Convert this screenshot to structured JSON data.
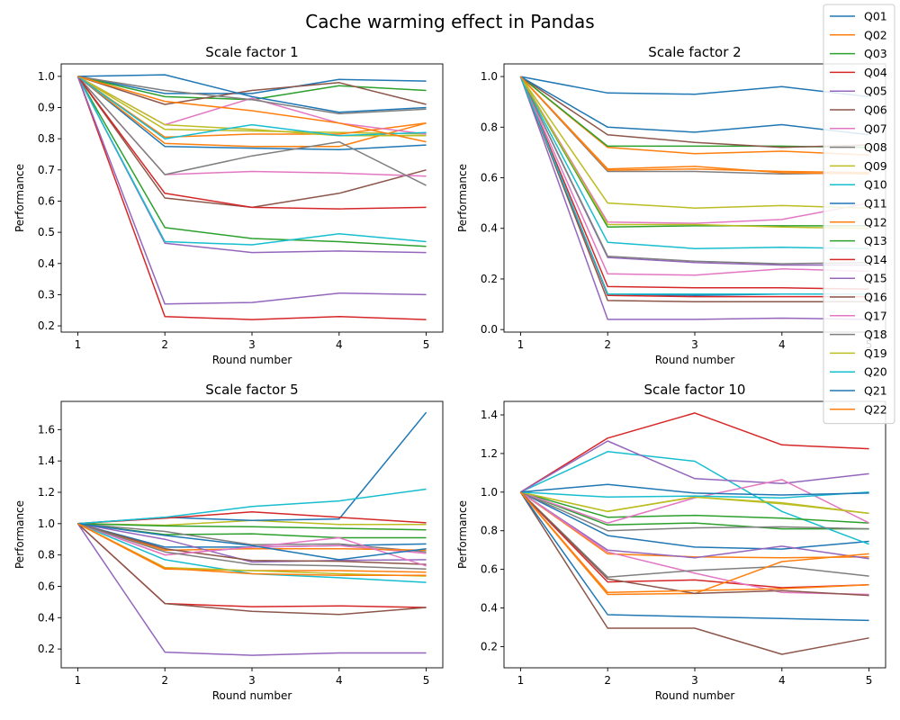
{
  "chart_data": {
    "type": "line",
    "title": "Cache warming effect in Pandas",
    "x": [
      1,
      2,
      3,
      4,
      5
    ],
    "xlabel": "Round number",
    "ylabel": "Performance",
    "legend": "top-right",
    "grid": false,
    "series_names": [
      "Q01",
      "Q02",
      "Q03",
      "Q04",
      "Q05",
      "Q06",
      "Q07",
      "Q08",
      "Q09",
      "Q10",
      "Q11",
      "Q12",
      "Q13",
      "Q14",
      "Q15",
      "Q16",
      "Q17",
      "Q18",
      "Q19",
      "Q20",
      "Q21",
      "Q22"
    ],
    "colors": [
      "#1f77b4",
      "#ff7f0e",
      "#2ca02c",
      "#d62728",
      "#9467bd",
      "#8c564b",
      "#e377c2",
      "#7f7f7f",
      "#bcbd22",
      "#17becf"
    ],
    "panels": [
      {
        "title": "Scale factor 1",
        "ylim": [
          0.18,
          1.04
        ],
        "yticks": [
          "0.2",
          "0.3",
          "0.4",
          "0.5",
          "0.6",
          "0.7",
          "0.8",
          "0.9",
          "1.0"
        ],
        "ytick_values": [
          0.2,
          0.3,
          0.4,
          0.5,
          0.6,
          0.7,
          0.8,
          0.9,
          1.0
        ],
        "series": [
          [
            1.0,
            0.775,
            0.77,
            0.765,
            0.78
          ],
          [
            1.0,
            0.785,
            0.775,
            0.775,
            0.85
          ],
          [
            1.0,
            0.515,
            0.48,
            0.47,
            0.455
          ],
          [
            1.0,
            0.23,
            0.22,
            0.23,
            0.22
          ],
          [
            1.0,
            0.465,
            0.435,
            0.44,
            0.435
          ],
          [
            1.0,
            0.61,
            0.58,
            0.625,
            0.7
          ],
          [
            1.0,
            0.685,
            0.695,
            0.69,
            0.68
          ],
          [
            1.0,
            0.685,
            0.745,
            0.79,
            0.65
          ],
          [
            1.0,
            0.83,
            0.825,
            0.82,
            0.815
          ],
          [
            1.0,
            0.47,
            0.46,
            0.495,
            0.47
          ],
          [
            1.0,
            0.945,
            0.945,
            0.99,
            0.985
          ],
          [
            1.0,
            0.805,
            0.815,
            0.815,
            0.85
          ],
          [
            1.0,
            0.935,
            0.925,
            0.97,
            0.955
          ],
          [
            1.0,
            0.625,
            0.58,
            0.575,
            0.58
          ],
          [
            1.0,
            0.27,
            0.275,
            0.305,
            0.3
          ],
          [
            1.0,
            0.91,
            0.955,
            0.98,
            0.91
          ],
          [
            1.0,
            0.845,
            0.93,
            0.85,
            0.815
          ],
          [
            1.0,
            0.955,
            0.925,
            0.88,
            0.895
          ],
          [
            1.0,
            0.845,
            0.83,
            0.81,
            0.81
          ],
          [
            1.0,
            0.8,
            0.845,
            0.81,
            0.82
          ],
          [
            1.0,
            1.005,
            0.935,
            0.885,
            0.9
          ],
          [
            1.0,
            0.92,
            0.89,
            0.85,
            0.79
          ]
        ]
      },
      {
        "title": "Scale factor 2",
        "ylim": [
          -0.01,
          1.05
        ],
        "yticks": [
          "0.0",
          "0.2",
          "0.4",
          "0.6",
          "0.8",
          "1.0"
        ],
        "ytick_values": [
          0.0,
          0.2,
          0.4,
          0.6,
          0.8,
          1.0
        ],
        "series": [
          [
            1.0,
            0.935,
            0.93,
            0.96,
            0.92
          ],
          [
            1.0,
            0.72,
            0.695,
            0.705,
            0.69
          ],
          [
            1.0,
            0.725,
            0.725,
            0.725,
            0.72
          ],
          [
            1.0,
            0.17,
            0.165,
            0.165,
            0.16
          ],
          [
            1.0,
            0.04,
            0.04,
            0.045,
            0.04
          ],
          [
            1.0,
            0.77,
            0.74,
            0.72,
            0.73
          ],
          [
            1.0,
            0.425,
            0.42,
            0.435,
            0.5
          ],
          [
            1.0,
            0.625,
            0.625,
            0.615,
            0.62
          ],
          [
            1.0,
            0.5,
            0.48,
            0.49,
            0.48
          ],
          [
            1.0,
            0.345,
            0.32,
            0.325,
            0.32
          ],
          [
            1.0,
            0.14,
            0.135,
            0.14,
            0.14
          ],
          [
            1.0,
            0.635,
            0.645,
            0.62,
            0.615
          ],
          [
            1.0,
            0.405,
            0.41,
            0.41,
            0.41
          ],
          [
            1.0,
            0.135,
            0.13,
            0.13,
            0.13
          ],
          [
            1.0,
            0.285,
            0.265,
            0.255,
            0.255
          ],
          [
            1.0,
            0.115,
            0.11,
            0.11,
            0.11
          ],
          [
            1.0,
            0.22,
            0.215,
            0.24,
            0.23
          ],
          [
            1.0,
            0.29,
            0.27,
            0.26,
            0.265
          ],
          [
            1.0,
            0.415,
            0.415,
            0.405,
            0.4
          ],
          [
            1.0,
            0.14,
            0.14,
            0.14,
            0.14
          ],
          [
            1.0,
            0.8,
            0.78,
            0.81,
            0.77
          ],
          [
            1.0,
            0.63,
            0.635,
            0.625,
            0.62
          ]
        ]
      },
      {
        "title": "Scale factor 5",
        "ylim": [
          0.08,
          1.78
        ],
        "yticks": [
          "0.2",
          "0.4",
          "0.6",
          "0.8",
          "1.0",
          "1.2",
          "1.4",
          "1.6"
        ],
        "ytick_values": [
          0.2,
          0.4,
          0.6,
          0.8,
          1.0,
          1.2,
          1.4,
          1.6
        ],
        "series": [
          [
            1.0,
            0.85,
            0.85,
            0.86,
            0.87
          ],
          [
            1.0,
            0.71,
            0.7,
            0.7,
            0.69
          ],
          [
            1.0,
            0.93,
            0.935,
            0.91,
            0.91
          ],
          [
            1.0,
            0.49,
            0.47,
            0.475,
            0.465
          ],
          [
            1.0,
            0.18,
            0.16,
            0.175,
            0.175
          ],
          [
            1.0,
            0.49,
            0.44,
            0.42,
            0.465
          ],
          [
            1.0,
            0.8,
            0.85,
            0.86,
            0.81
          ],
          [
            1.0,
            0.95,
            0.865,
            0.87,
            0.82
          ],
          [
            1.0,
            0.99,
            1.02,
            0.995,
            0.995
          ],
          [
            1.0,
            0.77,
            0.68,
            0.655,
            0.625
          ],
          [
            1.0,
            1.04,
            1.02,
            1.03,
            1.71
          ],
          [
            1.0,
            0.83,
            0.84,
            0.84,
            0.83
          ],
          [
            1.0,
            0.985,
            0.98,
            0.97,
            0.96
          ],
          [
            1.0,
            1.035,
            1.075,
            1.04,
            1.005
          ],
          [
            1.0,
            0.9,
            0.755,
            0.765,
            0.77
          ],
          [
            1.0,
            0.84,
            0.765,
            0.76,
            0.74
          ],
          [
            1.0,
            0.8,
            0.85,
            0.91,
            0.73
          ],
          [
            1.0,
            0.82,
            0.74,
            0.73,
            0.71
          ],
          [
            1.0,
            0.72,
            0.7,
            0.68,
            0.665
          ],
          [
            1.0,
            1.04,
            1.11,
            1.145,
            1.22
          ],
          [
            1.0,
            0.925,
            0.86,
            0.77,
            0.84
          ],
          [
            1.0,
            0.715,
            0.68,
            0.67,
            0.67
          ]
        ]
      },
      {
        "title": "Scale factor 10",
        "ylim": [
          0.09,
          1.47
        ],
        "yticks": [
          "0.2",
          "0.4",
          "0.6",
          "0.8",
          "1.0",
          "1.2",
          "1.4"
        ],
        "ytick_values": [
          0.2,
          0.4,
          0.6,
          0.8,
          1.0,
          1.2,
          1.4
        ],
        "series": [
          [
            1.0,
            0.775,
            0.715,
            0.705,
            0.745
          ],
          [
            1.0,
            0.68,
            0.665,
            0.66,
            0.665
          ],
          [
            1.0,
            0.83,
            0.84,
            0.81,
            0.81
          ],
          [
            1.0,
            0.535,
            0.545,
            0.505,
            0.52
          ],
          [
            1.0,
            0.7,
            0.66,
            0.72,
            0.655
          ],
          [
            1.0,
            0.295,
            0.295,
            0.16,
            0.245
          ],
          [
            1.0,
            0.69,
            0.58,
            0.48,
            0.47
          ],
          [
            1.0,
            0.56,
            0.595,
            0.615,
            0.565
          ],
          [
            1.0,
            0.9,
            0.975,
            0.94,
            0.89
          ],
          [
            1.0,
            1.21,
            1.16,
            0.9,
            0.73
          ],
          [
            1.0,
            0.365,
            0.355,
            0.345,
            0.335
          ],
          [
            1.0,
            0.47,
            0.475,
            0.64,
            0.68
          ],
          [
            1.0,
            0.87,
            0.88,
            0.865,
            0.84
          ],
          [
            1.0,
            1.28,
            1.41,
            1.245,
            1.225
          ],
          [
            1.0,
            1.265,
            1.07,
            1.045,
            1.095
          ],
          [
            1.0,
            0.55,
            0.475,
            0.49,
            0.465
          ],
          [
            1.0,
            0.84,
            0.97,
            1.065,
            0.84
          ],
          [
            1.0,
            0.8,
            0.815,
            0.82,
            0.81
          ],
          [
            1.0,
            0.9,
            0.975,
            0.945,
            0.89
          ],
          [
            1.0,
            0.975,
            0.98,
            0.97,
            1.0
          ],
          [
            1.0,
            1.04,
            0.995,
            0.985,
            0.995
          ],
          [
            1.0,
            0.48,
            0.49,
            0.5,
            0.52
          ]
        ]
      }
    ]
  }
}
